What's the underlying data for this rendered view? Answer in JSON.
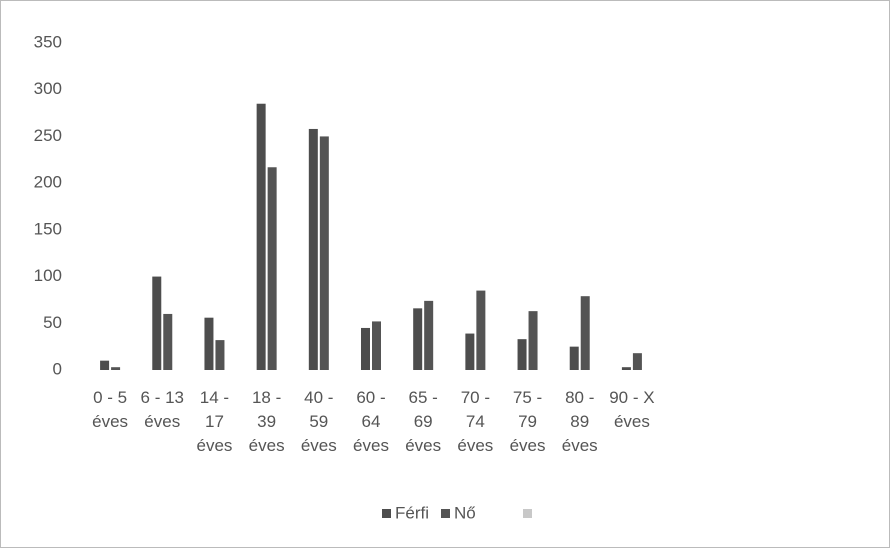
{
  "chart_data": {
    "type": "bar",
    "categories": [
      "0 - 5 éves",
      "6 - 13 éves",
      "14 - 17 éves",
      "18 - 39 éves",
      "40 - 59 éves",
      "60 - 64 éves",
      "65 - 69 éves",
      "70 - 74 éves",
      "75 - 79 éves",
      "80 - 89 éves",
      "90 - X éves"
    ],
    "series": [
      {
        "name": "Férfi",
        "color": "#4d4d4d",
        "values": [
          10,
          100,
          56,
          285,
          258,
          45,
          66,
          39,
          33,
          25,
          3
        ]
      },
      {
        "name": "Nő",
        "color": "#545454",
        "values": [
          3,
          60,
          32,
          217,
          250,
          52,
          74,
          85,
          63,
          79,
          18
        ]
      }
    ],
    "ylim": [
      0,
      350
    ],
    "yticks": [
      0,
      50,
      100,
      150,
      200,
      250,
      300,
      350
    ],
    "grid": false,
    "legend": "bottom"
  }
}
